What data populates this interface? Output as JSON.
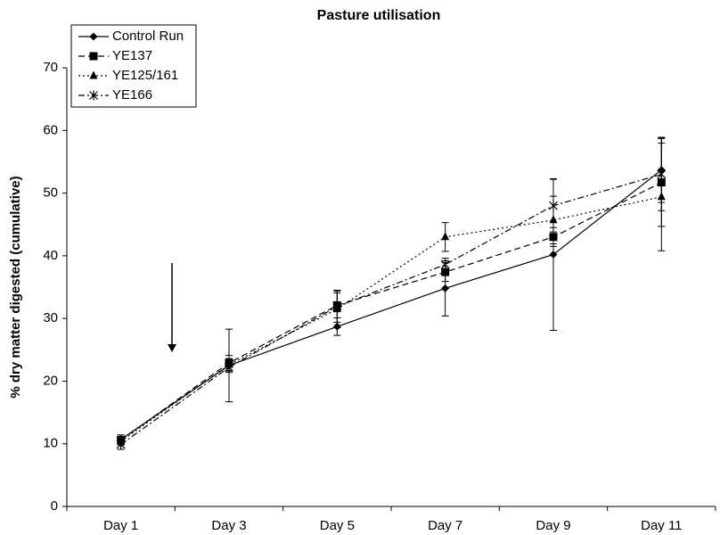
{
  "chart_data": {
    "type": "line",
    "title": "Pasture utilisation",
    "y_label": "% dry matter digested (cumulative)",
    "categories": [
      "Day 1",
      "Day 3",
      "Day 5",
      "Day 7",
      "Day 9",
      "Day 11"
    ],
    "ylim": [
      0,
      70
    ],
    "yticks": [
      0,
      10,
      20,
      30,
      40,
      50,
      60,
      70
    ],
    "grid": false,
    "legend": "top-left",
    "series": [
      {
        "name": "Control Run",
        "color": "#000000",
        "dash": "none",
        "marker": "diamond",
        "values": [
          10.7,
          22.5,
          28.7,
          34.8,
          40.2,
          53.7
        ],
        "errors": [
          0.7,
          5.8,
          1.4,
          4.4,
          12.1,
          5.2
        ]
      },
      {
        "name": "YE137",
        "color": "#000000",
        "dash": "7,4",
        "marker": "square",
        "values": [
          10.6,
          22.9,
          32.1,
          37.4,
          43.0,
          51.7
        ],
        "errors": [
          0.8,
          1.2,
          2.0,
          1.5,
          1.5,
          7.0
        ]
      },
      {
        "name": "YE125/161",
        "color": "#000000",
        "dash": "2,3",
        "marker": "triangle",
        "values": [
          10.4,
          22.6,
          31.5,
          43.0,
          45.7,
          49.4
        ],
        "errors": [
          0.6,
          1.0,
          3.0,
          2.3,
          3.8,
          8.6
        ]
      },
      {
        "name": "YE166",
        "color": "#000000",
        "dash": "7,3,2,3",
        "marker": "star",
        "values": [
          9.9,
          22.2,
          31.9,
          38.6,
          48.0,
          53.0
        ],
        "errors": [
          0.8,
          0.8,
          2.5,
          1.0,
          4.2,
          5.8
        ]
      }
    ]
  }
}
